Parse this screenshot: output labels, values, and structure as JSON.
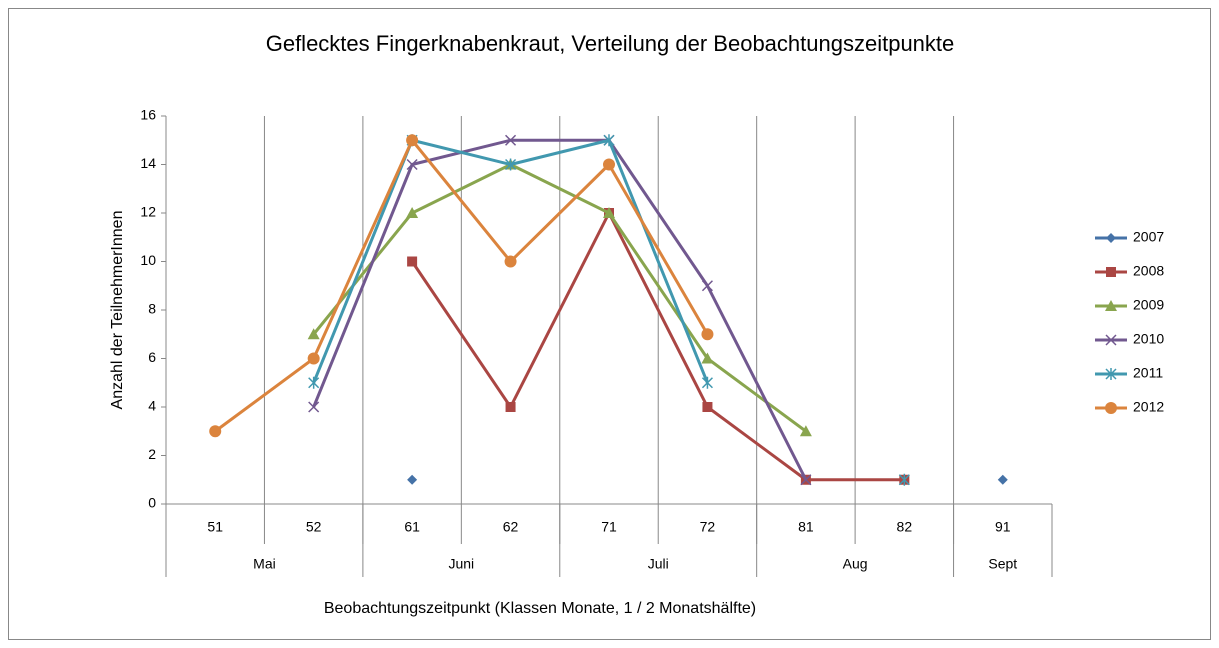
{
  "chart_data": {
    "type": "line",
    "title": "Geflecktes Fingerknabenkraut, Verteilung der Beobachtungszeitpunkte",
    "y_label": "Anzahl der TeilnehmerInnen",
    "x_label": "Beobachtungszeitpunkt (Klassen Monate, 1 / 2 Monatshälfte)",
    "categories": [
      "51",
      "52",
      "61",
      "62",
      "71",
      "72",
      "81",
      "82",
      "91"
    ],
    "groups": [
      {
        "label": "Mai",
        "span": 2
      },
      {
        "label": "Juni",
        "span": 2
      },
      {
        "label": "Juli",
        "span": 2
      },
      {
        "label": "Aug",
        "span": 2
      },
      {
        "label": "Sept",
        "span": 1
      }
    ],
    "ylim": [
      0,
      16
    ],
    "yticks": [
      0,
      2,
      4,
      6,
      8,
      10,
      12,
      14,
      16
    ],
    "grid": true,
    "legend": "right",
    "series": [
      {
        "name": "2007",
        "color": "#4572a7",
        "marker": "diamond",
        "values": [
          null,
          null,
          1,
          null,
          null,
          null,
          null,
          null,
          1
        ]
      },
      {
        "name": "2008",
        "color": "#aa4643",
        "marker": "square",
        "values": [
          null,
          null,
          10,
          4,
          12,
          4,
          1,
          1,
          null
        ]
      },
      {
        "name": "2009",
        "color": "#89a54e",
        "marker": "triangle",
        "values": [
          null,
          7,
          12,
          14,
          12,
          6,
          3,
          null,
          null
        ]
      },
      {
        "name": "2010",
        "color": "#71588f",
        "marker": "x",
        "values": [
          null,
          4,
          14,
          15,
          15,
          9,
          1,
          null,
          null
        ]
      },
      {
        "name": "2011",
        "color": "#4198af",
        "marker": "star",
        "values": [
          null,
          5,
          15,
          14,
          15,
          5,
          null,
          1,
          null
        ]
      },
      {
        "name": "2012",
        "color": "#db843d",
        "marker": "circle",
        "values": [
          3,
          6,
          15,
          10,
          14,
          7,
          null,
          null,
          null
        ]
      }
    ]
  }
}
